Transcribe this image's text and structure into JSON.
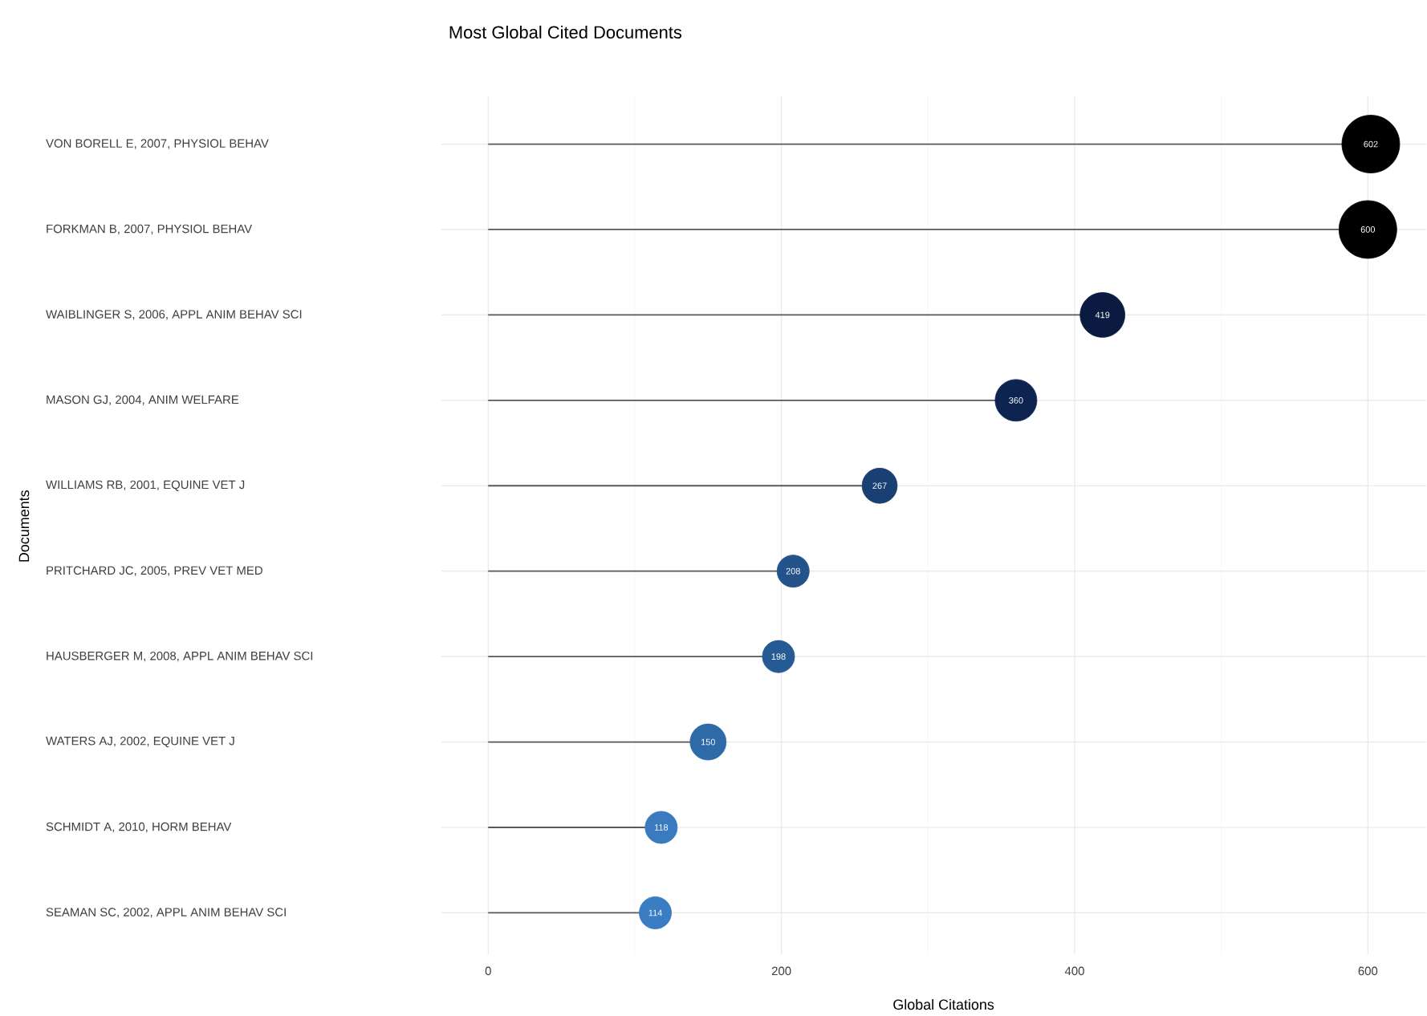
{
  "chart_data": {
    "type": "lollipop",
    "title": "Most Global Cited Documents",
    "xlabel": "Global Citations",
    "ylabel": "Documents",
    "orientation": "horizontal",
    "categories": [
      "VON BORELL E, 2007, PHYSIOL BEHAV",
      "FORKMAN B, 2007, PHYSIOL BEHAV",
      "WAIBLINGER S, 2006, APPL ANIM BEHAV SCI",
      "MASON GJ, 2004, ANIM WELFARE",
      "WILLIAMS RB, 2001, EQUINE VET J",
      "PRITCHARD JC, 2005, PREV VET MED",
      "HAUSBERGER M, 2008, APPL ANIM BEHAV SCI",
      "WATERS AJ, 2002, EQUINE VET J",
      "SCHMIDT A, 2010, HORM BEHAV",
      "SEAMAN SC, 2002, APPL ANIM BEHAV SCI"
    ],
    "values": [
      602,
      600,
      419,
      360,
      267,
      208,
      198,
      150,
      118,
      114
    ],
    "sizes": [
      1,
      1,
      0.6,
      0.52,
      0.37,
      0.31,
      0.31,
      0.39,
      0.31,
      0.31
    ],
    "colors": [
      "#000000",
      "#000000",
      "#0a1a40",
      "#0d2450",
      "#1a3f73",
      "#23538a",
      "#265a94",
      "#2e6aa8",
      "#3a7bbf",
      "#3b7dc2"
    ],
    "xlim": [
      -32,
      640
    ],
    "xticks": [
      0,
      200,
      400,
      600
    ],
    "grid": true,
    "marker": "circle",
    "data_labels": true
  }
}
